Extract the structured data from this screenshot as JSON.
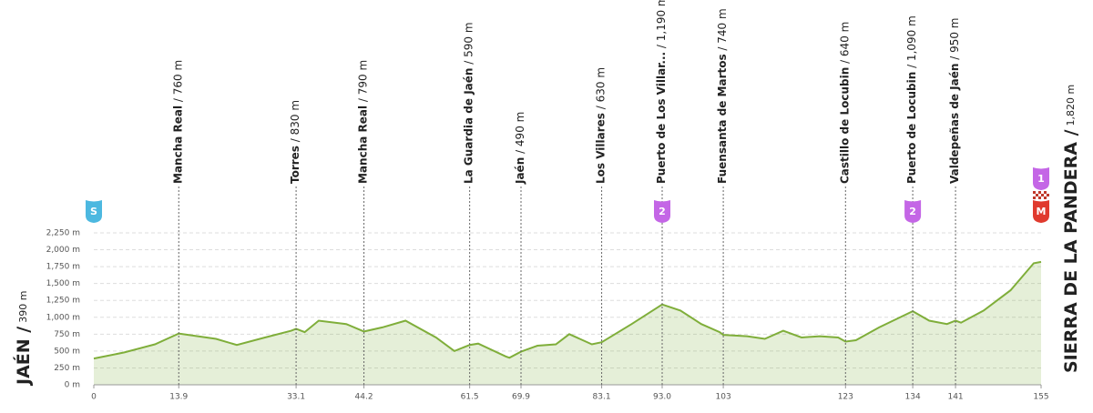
{
  "chart_data": {
    "type": "line",
    "start": {
      "name": "JAÉN /",
      "elevation": "390 m"
    },
    "finish": {
      "name": "SIERRA DE LA PANDERA /",
      "elevation": "1,820 m"
    },
    "x": [
      0,
      5,
      10,
      13.9,
      17,
      20,
      23.4,
      28,
      32.3,
      33.1,
      34.5,
      36.8,
      41.3,
      44.2,
      47.2,
      51,
      56,
      59,
      61.5,
      62.9,
      67.4,
      68,
      69.9,
      72.6,
      75.6,
      77.8,
      81.5,
      83.1,
      88,
      93,
      96,
      99.4,
      102.4,
      103,
      106.9,
      109.8,
      112.8,
      115.8,
      118.8,
      121.8,
      123,
      124.7,
      128.5,
      134,
      136.7,
      139.6,
      141,
      141.9,
      145.6,
      150,
      153.8,
      155
    ],
    "series": [
      {
        "name": "Elevation",
        "color": "#7fae3a",
        "values": [
          390,
          480,
          600,
          760,
          720,
          680,
          590,
          700,
          800,
          830,
          780,
          950,
          900,
          790,
          850,
          950,
          700,
          500,
          590,
          610,
          420,
          400,
          490,
          580,
          600,
          750,
          600,
          630,
          900,
          1190,
          1100,
          900,
          780,
          740,
          720,
          680,
          800,
          700,
          720,
          700,
          640,
          660,
          850,
          1090,
          950,
          900,
          950,
          920,
          1100,
          1400,
          1800,
          1820
        ]
      }
    ],
    "xlim": [
      0,
      155
    ],
    "xticks": [
      0,
      13.9,
      33.1,
      44.2,
      61.5,
      69.9,
      83.1,
      {
        "value": 93,
        "label": "93.0"
      },
      103,
      123,
      134,
      141,
      155
    ],
    "ylim": [
      0,
      2250
    ],
    "yticks": [
      {
        "value": 0,
        "label": "0 m"
      },
      {
        "value": 250,
        "label": "250 m"
      },
      {
        "value": 500,
        "label": "500 m"
      },
      {
        "value": 750,
        "label": "750 m"
      },
      {
        "value": 1000,
        "label": "1,000 m"
      },
      {
        "value": 1250,
        "label": "1,250 m"
      },
      {
        "value": 1500,
        "label": "1,500 m"
      },
      {
        "value": 1750,
        "label": "1,750 m"
      },
      {
        "value": 2000,
        "label": "2,000 m"
      },
      {
        "value": 2250,
        "label": "2,250 m"
      }
    ],
    "grid": true,
    "waypoints": [
      {
        "tick": 1,
        "name": "Mancha Real",
        "elevation": " / 760 m"
      },
      {
        "tick": 2,
        "name": "Torres",
        "elevation": " / 830 m"
      },
      {
        "tick": 3,
        "name": "Mancha Real",
        "elevation": " / 790 m"
      },
      {
        "tick": 4,
        "name": "La Guardia de Jaén",
        "elevation": " / 590 m"
      },
      {
        "tick": 5,
        "name": "Jaén",
        "elevation": " / 490 m"
      },
      {
        "tick": 6,
        "name": "Los Villares",
        "elevation": " / 630 m"
      },
      {
        "tick": 7,
        "name": "Puerto de Los Villar...",
        "elevation": " / 1,190 m"
      },
      {
        "tick": 8,
        "name": "Fuensanta de Martos",
        "elevation": " / 740 m"
      },
      {
        "tick": 9,
        "name": "Castillo de Locubin",
        "elevation": " / 640 m"
      },
      {
        "tick": 10,
        "name": "Puerto de Locubin",
        "elevation": " / 1,090 m"
      },
      {
        "tick": 11,
        "name": "Valdepeñas de Jaén",
        "elevation": " / 950 m"
      }
    ],
    "badges": [
      {
        "tick": 0,
        "label": "S",
        "color": "#4cb8e0",
        "row": 0
      },
      {
        "tick": 7,
        "label": "2",
        "color": "#c466e6",
        "row": 0
      },
      {
        "tick": 10,
        "label": "2",
        "color": "#c466e6",
        "row": 0
      },
      {
        "tick": 12,
        "label": "1",
        "color": "#c466e6",
        "row": 1
      },
      {
        "tick": 12,
        "label": "M",
        "color": "#e03a2e",
        "row": 0
      }
    ]
  }
}
